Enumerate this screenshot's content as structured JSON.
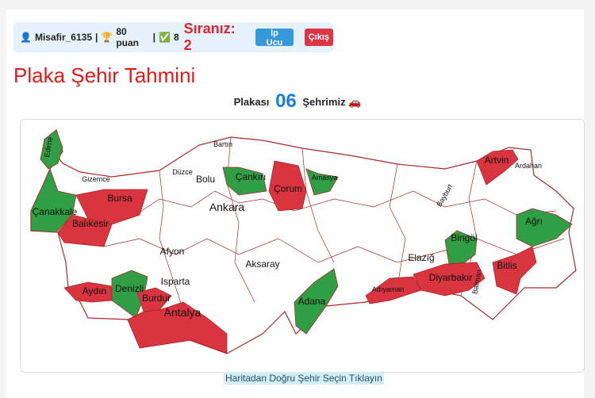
{
  "topbar": {
    "user": "Misafir_6135",
    "points": "80 puan",
    "correct": "8",
    "rank": "Sıranız: 2",
    "tip_label": "İp Ucu",
    "exit_label": "Çıkış",
    "sep": "|"
  },
  "title": "Plaka Şehir Tahmini",
  "prompt": {
    "before": "Plakası",
    "plate": "06",
    "after": "Şehrimiz",
    "icon": "🚗"
  },
  "map": {
    "colors": {
      "correct": "#2f9e44",
      "wrong": "#d9343f",
      "border": "#a52a2a"
    },
    "labels": [
      {
        "name": "Edirne",
        "size": "s"
      },
      {
        "name": "Gizemce",
        "size": "s"
      },
      {
        "name": "Bartın",
        "size": "s"
      },
      {
        "name": "Düzce",
        "size": "s"
      },
      {
        "name": "Bolu",
        "size": "m"
      },
      {
        "name": "Çankırı",
        "size": "m"
      },
      {
        "name": "Amasya",
        "size": "s"
      },
      {
        "name": "Çorum",
        "size": "m"
      },
      {
        "name": "Artvin",
        "size": "m"
      },
      {
        "name": "Ardahan",
        "size": "s"
      },
      {
        "name": "Bursa",
        "size": "m"
      },
      {
        "name": "Çanakkale",
        "size": "m"
      },
      {
        "name": "Balıkesir",
        "size": "m"
      },
      {
        "name": "Ankara",
        "size": "l"
      },
      {
        "name": "Bayburt",
        "size": "s"
      },
      {
        "name": "Ağrı",
        "size": "m"
      },
      {
        "name": "Afyon",
        "size": "m"
      },
      {
        "name": "Bingöl",
        "size": "m"
      },
      {
        "name": "Elazığ",
        "size": "m"
      },
      {
        "name": "Aksaray",
        "size": "m"
      },
      {
        "name": "Bitlis",
        "size": "m"
      },
      {
        "name": "Isparta",
        "size": "m"
      },
      {
        "name": "Aydın",
        "size": "m"
      },
      {
        "name": "Denizli",
        "size": "m"
      },
      {
        "name": "Diyarbakır",
        "size": "m"
      },
      {
        "name": "Burdur",
        "size": "m"
      },
      {
        "name": "Adıyaman",
        "size": "s"
      },
      {
        "name": "Batman",
        "size": "s"
      },
      {
        "name": "Adana",
        "size": "m"
      },
      {
        "name": "Antalya",
        "size": "l"
      }
    ]
  },
  "hint": "Haritadan Doğru Şehir Seçin Tıklayın"
}
